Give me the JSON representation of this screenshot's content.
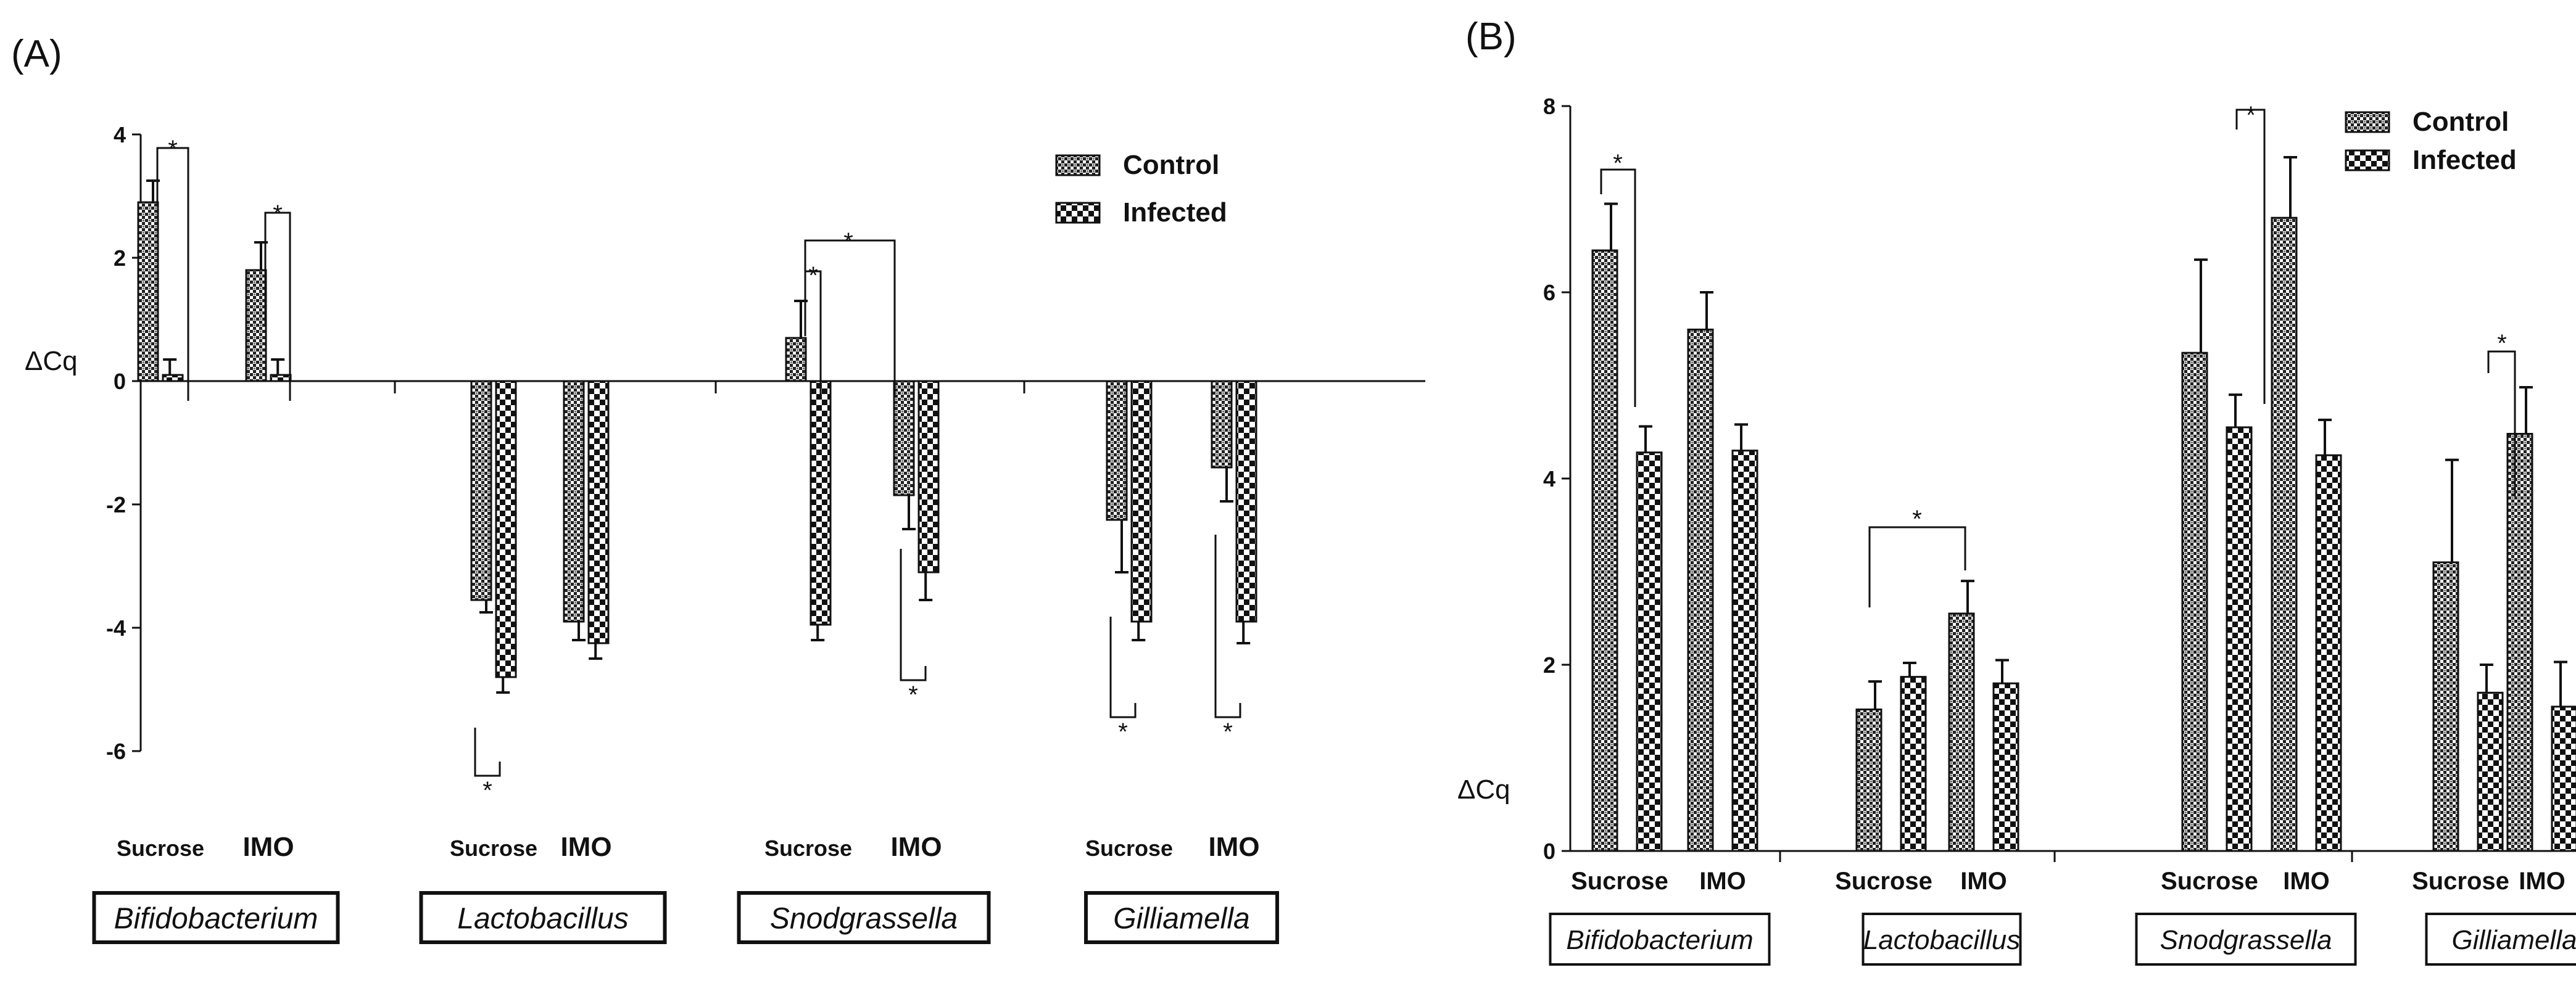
{
  "colors": {
    "axis": "#111111",
    "bar_stroke": "#111111",
    "background": "#ffffff"
  },
  "chart_data": [
    {
      "panel": "(A)",
      "type": "bar",
      "ylabel": "ΔCq",
      "ylim": [
        -6,
        4
      ],
      "yticks": [
        4,
        2,
        0,
        -2,
        -4,
        -6
      ],
      "legend": {
        "position": "top-right",
        "entries": [
          "Control",
          "Infected"
        ]
      },
      "series": [
        {
          "name": "Control",
          "pattern": "fine-check"
        },
        {
          "name": "Infected",
          "pattern": "coarse-check"
        }
      ],
      "groups": [
        {
          "genus": "Bifidobacterium",
          "diets": [
            {
              "label": "Sucrose",
              "values": [
                2.9,
                0.1
              ],
              "errors": [
                0.35,
                0.25
              ]
            },
            {
              "label": "IMO",
              "values": [
                1.8,
                0.1
              ],
              "errors": [
                0.45,
                0.25
              ]
            }
          ]
        },
        {
          "genus": "Lactobacillus",
          "diets": [
            {
              "label": "Sucrose",
              "values": [
                -3.55,
                -4.8
              ],
              "errors": [
                0.2,
                0.25
              ]
            },
            {
              "label": "IMO",
              "values": [
                -3.9,
                -4.25
              ],
              "errors": [
                0.3,
                0.25
              ]
            }
          ]
        },
        {
          "genus": "Snodgrassella",
          "diets": [
            {
              "label": "Sucrose",
              "values": [
                0.7,
                -3.95
              ],
              "errors": [
                0.6,
                0.25
              ]
            },
            {
              "label": "IMO",
              "values": [
                -1.85,
                -3.1
              ],
              "errors": [
                0.55,
                0.45
              ]
            }
          ]
        },
        {
          "genus": "Gilliamella",
          "diets": [
            {
              "label": "Sucrose",
              "values": [
                -2.25,
                -3.9
              ],
              "errors": [
                0.85,
                0.3
              ]
            },
            {
              "label": "IMO",
              "values": [
                -1.4,
                -3.9
              ],
              "errors": [
                0.55,
                0.35
              ]
            }
          ]
        }
      ],
      "significance": "*"
    },
    {
      "panel": "(B)",
      "type": "bar",
      "ylabel": "ΔCq",
      "ylim": [
        0,
        8
      ],
      "yticks": [
        8,
        6,
        4,
        2,
        0
      ],
      "legend": {
        "position": "top-right",
        "entries": [
          "Control",
          "Infected"
        ]
      },
      "series": [
        {
          "name": "Control",
          "pattern": "fine-check"
        },
        {
          "name": "Infected",
          "pattern": "coarse-check"
        }
      ],
      "groups": [
        {
          "genus": "Bifidobacterium",
          "diets": [
            {
              "label": "Sucrose",
              "values": [
                6.45,
                4.28
              ],
              "errors": [
                0.5,
                0.28
              ]
            },
            {
              "label": "IMO",
              "values": [
                5.6,
                4.3
              ],
              "errors": [
                0.4,
                0.28
              ]
            }
          ]
        },
        {
          "genus": "Lactobacillus",
          "diets": [
            {
              "label": "Sucrose",
              "values": [
                1.52,
                1.87
              ],
              "errors": [
                0.3,
                0.15
              ]
            },
            {
              "label": "IMO",
              "values": [
                2.55,
                1.8
              ],
              "errors": [
                0.35,
                0.25
              ]
            }
          ]
        },
        {
          "genus": "Snodgrassella",
          "diets": [
            {
              "label": "Sucrose",
              "values": [
                5.35,
                4.55
              ],
              "errors": [
                1.0,
                0.35
              ]
            },
            {
              "label": "IMO",
              "values": [
                6.8,
                4.25
              ],
              "errors": [
                0.65,
                0.38
              ]
            }
          ]
        },
        {
          "genus": "Gilliamella",
          "diets": [
            {
              "label": "Sucrose",
              "values": [
                3.1,
                1.7
              ],
              "errors": [
                1.1,
                0.3
              ]
            },
            {
              "label": "IMO",
              "values": [
                4.48,
                1.55
              ],
              "errors": [
                0.5,
                0.48
              ]
            }
          ]
        }
      ],
      "significance": "*"
    }
  ]
}
